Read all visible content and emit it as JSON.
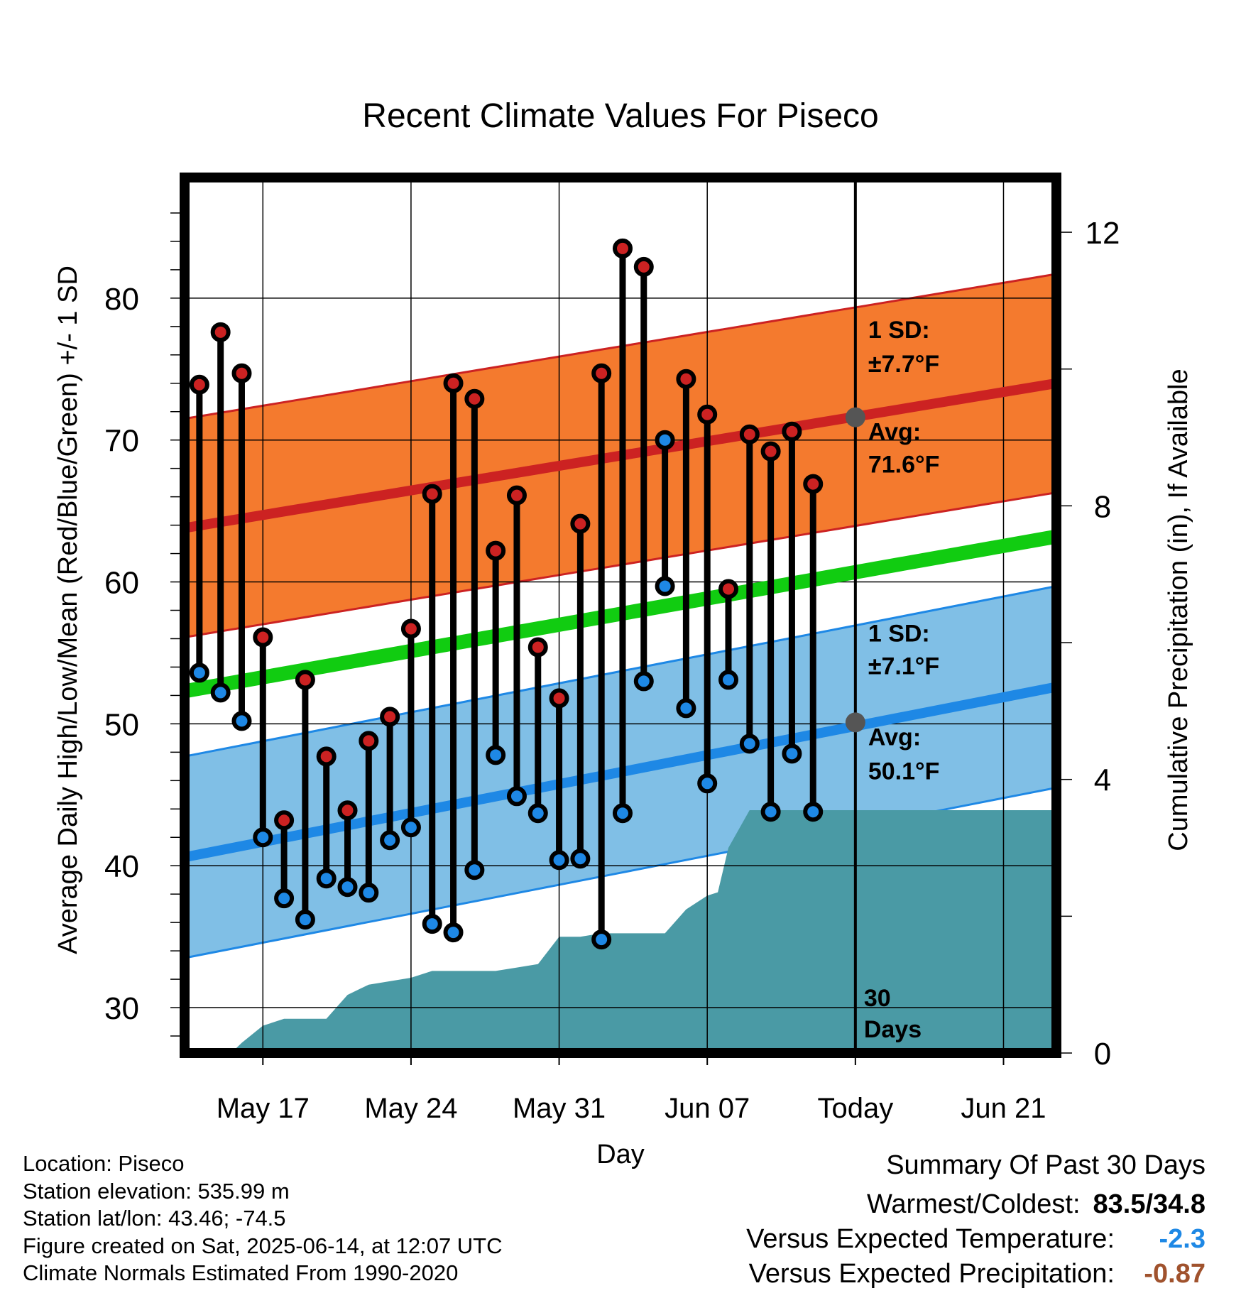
{
  "chart_data": {
    "type": "line",
    "title": "Recent Climate Values For Piseco",
    "xlabel": "Day",
    "ylabel": "Average Daily High/Low/Mean (Red/Blue/Green) +/- 1 SD",
    "ylabel_right": "Cumulative Precipitation (in), If Available",
    "x_ticks": [
      {
        "day": 17,
        "label": "May 17"
      },
      {
        "day": 24,
        "label": "May 24"
      },
      {
        "day": 31,
        "label": "May 31"
      },
      {
        "day": 38,
        "label": "Jun 07"
      },
      {
        "day": 45,
        "label": "Today"
      },
      {
        "day": 52,
        "label": "Jun 21"
      }
    ],
    "y_ticks": [
      30,
      40,
      50,
      60,
      70,
      80
    ],
    "y2_ticks": [
      0,
      4,
      8,
      12
    ],
    "xlim": [
      13.3,
      54.5
    ],
    "ylim": [
      26.8,
      88.5
    ],
    "y2lim": [
      0,
      12.8
    ],
    "grid": true,
    "today_day": 45,
    "today_label": "30 Days",
    "normal_high": {
      "start": 63.8,
      "end": 74.0,
      "sd": 7.7,
      "label_sd": "1 SD:",
      "label_sd_value": "±7.7°F",
      "label_avg": "Avg:",
      "label_avg_value": "71.6°F",
      "today_value": 71.6
    },
    "normal_low": {
      "start": 40.6,
      "end": 52.6,
      "sd": 7.1,
      "label_sd": "1 SD:",
      "label_sd_value": "±7.1°F",
      "label_avg": "Avg:",
      "label_avg_value": "50.1°F",
      "today_value": 50.1
    },
    "normal_mean": {
      "start": 52.3,
      "end": 63.2
    },
    "series": [
      {
        "name": "High",
        "color": "#cc2222",
        "x": [
          14,
          15,
          16,
          17,
          18,
          19,
          20,
          21,
          22,
          23,
          24,
          25,
          26,
          27,
          28,
          29,
          30,
          31,
          32,
          33,
          34,
          35,
          36,
          37,
          38,
          39,
          40,
          41,
          42,
          43,
          44
        ],
        "values": [
          73.9,
          77.6,
          74.7,
          56.1,
          43.2,
          53.1,
          47.7,
          43.9,
          48.8,
          50.5,
          56.7,
          66.2,
          74.0,
          72.9,
          62.2,
          66.1,
          55.4,
          51.8,
          64.1,
          74.7,
          83.5,
          82.2,
          70.0,
          74.3,
          71.8,
          59.5,
          70.4,
          69.2,
          70.6,
          66.9,
          null
        ],
        "colors": [
          "#cc2222",
          "#cc2222",
          "#cc2222",
          "#cc2222",
          "#cc2222",
          "#cc2222",
          "#cc2222",
          "#cc2222",
          "#cc2222",
          "#cc2222",
          "#cc2222",
          "#cc2222",
          "#cc2222",
          "#cc2222",
          "#cc2222",
          "#cc2222",
          "#cc2222",
          "#cc2222",
          "#cc2222",
          "#cc2222",
          "#cc2222",
          "#cc2222",
          "#1e88e5",
          "#cc2222",
          "#cc2222",
          "#cc2222",
          "#cc2222",
          "#cc2222",
          "#cc2222",
          "#cc2222",
          "#cc2222"
        ]
      },
      {
        "name": "Low",
        "color": "#1e88e5",
        "x": [
          14,
          15,
          16,
          17,
          18,
          19,
          20,
          21,
          22,
          23,
          24,
          25,
          26,
          27,
          28,
          29,
          30,
          31,
          32,
          33,
          34,
          35,
          36,
          37,
          38,
          39,
          40,
          41,
          42,
          43,
          44
        ],
        "values": [
          53.6,
          52.2,
          50.2,
          42.0,
          37.7,
          36.2,
          39.1,
          38.5,
          38.1,
          41.8,
          42.7,
          35.9,
          35.3,
          39.7,
          47.8,
          44.9,
          43.7,
          40.4,
          40.5,
          34.8,
          43.7,
          53.0,
          59.7,
          51.1,
          45.8,
          53.1,
          48.6,
          43.8,
          47.9,
          43.8,
          null
        ],
        "colors": [
          "#1e88e5",
          "#1e88e5",
          "#1e88e5",
          "#1e88e5",
          "#1e88e5",
          "#1e88e5",
          "#1e88e5",
          "#1e88e5",
          "#1e88e5",
          "#1e88e5",
          "#1e88e5",
          "#1e88e5",
          "#1e88e5",
          "#1e88e5",
          "#1e88e5",
          "#1e88e5",
          "#1e88e5",
          "#1e88e5",
          "#1e88e5",
          "#1e88e5",
          "#1e88e5",
          "#1e88e5",
          "#1e88e5",
          "#1e88e5",
          "#1e88e5",
          "#1e88e5",
          "#1e88e5",
          "#1e88e5",
          "#1e88e5",
          "#1e88e5",
          "#1e88e5"
        ]
      }
    ],
    "precip_cumulative": {
      "x": [
        15.5,
        16,
        17,
        18,
        19,
        20,
        21,
        22,
        23,
        24,
        25,
        26,
        27,
        28,
        29,
        30,
        31,
        32,
        33,
        34,
        35,
        36,
        37,
        38,
        38.5,
        39,
        40,
        41,
        42,
        43,
        44,
        45,
        46,
        47,
        48,
        49,
        50,
        51,
        52,
        53,
        54.5
      ],
      "values": [
        0,
        0.15,
        0.4,
        0.5,
        0.5,
        0.5,
        0.85,
        1.0,
        1.05,
        1.1,
        1.2,
        1.2,
        1.2,
        1.2,
        1.25,
        1.3,
        1.7,
        1.7,
        1.75,
        1.75,
        1.75,
        1.75,
        2.1,
        2.3,
        2.35,
        3.0,
        3.55,
        3.55,
        3.55,
        3.55,
        3.55,
        3.55,
        3.55,
        3.55,
        3.55,
        3.55,
        3.55,
        3.55,
        3.55,
        3.55,
        3.55
      ]
    }
  },
  "footer": {
    "location": "Location: Piseco",
    "elevation": "Station elevation: 535.99 m",
    "latlon": "Station lat/lon: 43.46; -74.5",
    "created": "Figure created on Sat, 2025-06-14, at 12:07 UTC",
    "normals": "Climate Normals Estimated From 1990-2020"
  },
  "summary": {
    "title": "Summary Of Past 30 Days",
    "warmest_label": "Warmest/Coldest:",
    "warmest_value": "83.5/34.8",
    "temp_label": "Versus Expected Temperature:",
    "temp_value": "-2.3",
    "temp_color": "#1e88e5",
    "precip_label": "Versus Expected Precipitation:",
    "precip_value": "-0.87",
    "precip_color": "#a0522d"
  },
  "colors": {
    "high_band": "#f47a2e",
    "high_line": "#cc2222",
    "low_band": "#80bfe6",
    "low_line": "#1e88e5",
    "mean_line": "#11cc11",
    "precip_fill": "#4a9aa5",
    "avg_marker": "#555555",
    "sd_label": "#555555"
  }
}
